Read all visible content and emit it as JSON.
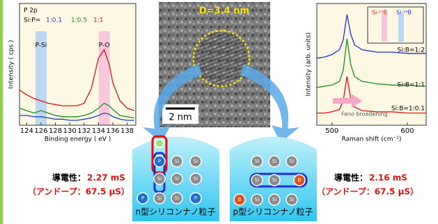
{
  "chart_data": [
    {
      "type": "line",
      "title": "P 2p",
      "legend_title": "Si:P=",
      "x_label": "Binding energy ( eV )",
      "y_label": "Intensity ( cps )",
      "x": [
        123,
        124,
        125,
        126,
        127,
        128,
        129,
        130,
        131,
        132,
        133,
        134,
        134.8,
        135.5,
        136,
        137,
        138,
        139
      ],
      "series": [
        {
          "name": "1:0.1",
          "color": "#1f3fbf",
          "values": [
            8,
            8,
            7,
            7,
            6,
            5,
            5,
            4,
            4,
            5,
            6,
            8,
            10,
            9,
            7,
            5,
            4,
            4
          ]
        },
        {
          "name": "1:0.5",
          "color": "#1a8c1a",
          "values": [
            14,
            12,
            10,
            12,
            10,
            8,
            7,
            7,
            7,
            8,
            10,
            14,
            18,
            16,
            13,
            8,
            7,
            6
          ]
        },
        {
          "name": "1:1",
          "color": "#e01010",
          "values": [
            29,
            25,
            22,
            20,
            18,
            17,
            16,
            16,
            16,
            18,
            30,
            55,
            62,
            50,
            35,
            20,
            14,
            12
          ]
        }
      ],
      "annotations": [
        {
          "text": "P-Si",
          "x": 126,
          "color": "#bcd8f0"
        },
        {
          "text": "P-O",
          "x": 134.8,
          "color": "#f7c8dc"
        }
      ],
      "xlim": [
        123,
        139.2
      ],
      "xticks": [
        124,
        126,
        128,
        130,
        132,
        134,
        136,
        138
      ],
      "ylim": [
        0,
        100
      ]
    },
    {
      "type": "line",
      "x_label": "Raman shift (cm⁻¹)",
      "y_label": "Intensity (arb. units)",
      "x": [
        480,
        490,
        500,
        510,
        515,
        520,
        525,
        530,
        540,
        560,
        580,
        600,
        620,
        625
      ],
      "series": [
        {
          "name": "Si:B=1:2",
          "color": "#1f2fd0",
          "values": [
            55,
            56,
            58,
            62,
            70,
            91,
            75,
            66,
            62,
            60,
            60,
            59,
            59,
            59
          ]
        },
        {
          "name": "Si:B=1:1",
          "color": "#1a8c1a",
          "values": [
            31,
            32,
            33,
            36,
            45,
            71,
            50,
            40,
            36,
            34,
            33,
            33,
            32,
            32
          ]
        },
        {
          "name": "Si:B=1:0.1",
          "color": "#e01010",
          "values": [
            10,
            10,
            11,
            13,
            20,
            40,
            22,
            15,
            12,
            11,
            11,
            10,
            10,
            10
          ]
        }
      ],
      "annotation": "Fano broadening",
      "inset": {
        "labels": [
          "Si-¹¹B",
          "Si-¹⁰B"
        ]
      },
      "xlim": [
        480,
        625
      ],
      "xticks": [
        500,
        600
      ],
      "ylim": [
        0,
        100
      ]
    }
  ],
  "image": {
    "diameter": "D=3.4 nm",
    "scale_bar": "2 nm"
  },
  "atoms": {
    "si": "Si",
    "p": "P",
    "b": "B"
  },
  "left": {
    "caption": "n型シリコンナノ粒子",
    "conductivity_label": "導電性：",
    "conductivity": "2.27 mS",
    "undoped": "（アンドープ：67.5 μS）"
  },
  "right": {
    "caption": "p型シリコンナノ粒子",
    "conductivity_label": "導電性：",
    "conductivity": "2.16 mS",
    "undoped": "（アンドープ：67.5 μS）"
  }
}
